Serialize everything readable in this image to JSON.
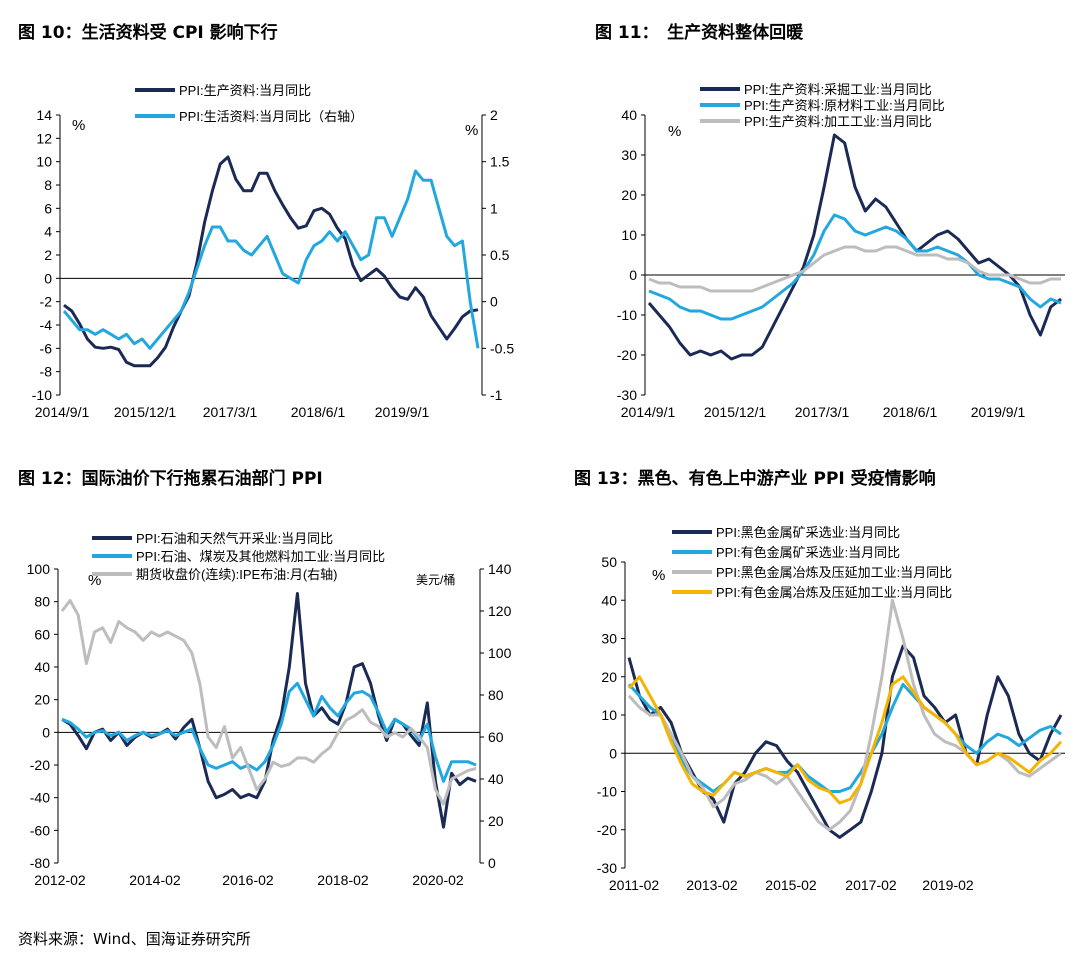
{
  "colors": {
    "navy": "#1b2a55",
    "sky": "#22a7df",
    "gray": "#bdbdbd",
    "gold": "#f5b400"
  },
  "source": "资料来源：Wind、国海证券研究所",
  "chart_data": [
    {
      "id": "fig10",
      "type": "line",
      "title": "图 10：生活资料受 CPI 影响下行",
      "x_ticks": [
        "2014/9/1",
        "2015/12/1",
        "2017/3/1",
        "2018/6/1",
        "2019/9/1"
      ],
      "left_axis": {
        "min": -10,
        "max": 14,
        "step": 2,
        "ticks": [
          "-10",
          "-8",
          "-6",
          "-4",
          "-2",
          "0",
          "2",
          "4",
          "6",
          "8",
          "10",
          "12",
          "14"
        ],
        "unit": "%"
      },
      "right_axis": {
        "min": -1,
        "max": 2,
        "step": 0.5,
        "ticks": [
          "-1",
          "-0.5",
          "0",
          "0.5",
          "1",
          "1.5",
          "2"
        ],
        "unit": "%"
      },
      "series": [
        {
          "name": "PPI:生产资料:当月同比",
          "color": "#1b2a55",
          "axis": "left",
          "values": [
            -2.3,
            -2.8,
            -3.9,
            -5.2,
            -5.9,
            -6.0,
            -5.9,
            -6.1,
            -7.2,
            -7.5,
            -7.5,
            -7.5,
            -6.8,
            -5.9,
            -4.2,
            -2.8,
            -1.5,
            1.3,
            4.8,
            7.5,
            9.8,
            10.4,
            8.5,
            7.5,
            7.5,
            9.0,
            9.0,
            7.5,
            6.3,
            5.2,
            4.3,
            4.5,
            5.8,
            6.0,
            5.5,
            4.3,
            3.4,
            1.1,
            -0.2,
            0.3,
            0.8,
            0.2,
            -0.8,
            -1.6,
            -1.8,
            -0.8,
            -1.6,
            -3.2,
            -4.2,
            -5.2,
            -4.3,
            -3.3,
            -2.8,
            -2.7
          ]
        },
        {
          "name": "PPI:生活资料:当月同比（右轴）",
          "color": "#22a7df",
          "axis": "right",
          "values": [
            -0.1,
            -0.2,
            -0.3,
            -0.3,
            -0.35,
            -0.3,
            -0.35,
            -0.4,
            -0.35,
            -0.45,
            -0.4,
            -0.5,
            -0.4,
            -0.3,
            -0.2,
            -0.1,
            0.1,
            0.35,
            0.6,
            0.8,
            0.8,
            0.65,
            0.65,
            0.55,
            0.5,
            0.6,
            0.7,
            0.5,
            0.3,
            0.25,
            0.2,
            0.45,
            0.6,
            0.65,
            0.75,
            0.65,
            0.75,
            0.6,
            0.45,
            0.5,
            0.9,
            0.9,
            0.7,
            0.9,
            1.1,
            1.4,
            1.3,
            1.3,
            1.0,
            0.7,
            0.6,
            0.65,
            0.0,
            -0.5
          ]
        }
      ]
    },
    {
      "id": "fig11",
      "type": "line",
      "title": "图 11：　生产资料整体回暖",
      "x_ticks": [
        "2014/9/1",
        "2015/12/1",
        "2017/3/1",
        "2018/6/1",
        "2019/9/1"
      ],
      "left_axis": {
        "min": -30,
        "max": 40,
        "step": 10,
        "ticks": [
          "-30",
          "-20",
          "-10",
          "0",
          "10",
          "20",
          "30",
          "40"
        ],
        "unit": "%"
      },
      "series": [
        {
          "name": "PPI:生产资料:采掘工业:当月同比",
          "color": "#1b2a55",
          "axis": "left",
          "values": [
            -7,
            -10,
            -13,
            -17,
            -20,
            -19,
            -20,
            -19,
            -21,
            -20,
            -20,
            -18,
            -13,
            -8,
            -3,
            2,
            10,
            22,
            35,
            33,
            22,
            16,
            19,
            17,
            13,
            9,
            6,
            8,
            10,
            11,
            9,
            6,
            3,
            4,
            2,
            0,
            -3,
            -10,
            -15,
            -8,
            -6
          ]
        },
        {
          "name": "PPI:生产资料:原材料工业:当月同比",
          "color": "#22a7df",
          "axis": "left",
          "values": [
            -4,
            -5,
            -6,
            -8,
            -9,
            -9,
            -10,
            -11,
            -11,
            -10,
            -9,
            -8,
            -6,
            -4,
            -2,
            1,
            5,
            11,
            15,
            14,
            11,
            10,
            11,
            12,
            11,
            9,
            6,
            6,
            7,
            6,
            5,
            3,
            0,
            -1,
            -1,
            -2,
            -3,
            -6,
            -8,
            -6,
            -7
          ]
        },
        {
          "name": "PPI:生产资料:加工工业:当月同比",
          "color": "#bdbdbd",
          "axis": "left",
          "values": [
            -1,
            -2,
            -2,
            -3,
            -3,
            -3,
            -4,
            -4,
            -4,
            -4,
            -4,
            -3,
            -2,
            -1,
            0,
            1,
            3,
            5,
            6,
            7,
            7,
            6,
            6,
            7,
            7,
            6,
            5,
            5,
            5,
            4,
            4,
            3,
            1,
            0,
            0,
            0,
            -1,
            -2,
            -2,
            -1,
            -1
          ]
        }
      ]
    },
    {
      "id": "fig12",
      "type": "line",
      "title": "图 12：国际油价下行拖累石油部门 PPI",
      "x_ticks": [
        "2012-02",
        "2014-02",
        "2016-02",
        "2018-02",
        "2020-02"
      ],
      "left_axis": {
        "min": -80,
        "max": 100,
        "step": 20,
        "ticks": [
          "-80",
          "-60",
          "-40",
          "-20",
          "0",
          "20",
          "40",
          "60",
          "80",
          "100"
        ],
        "unit": "%"
      },
      "right_axis": {
        "min": 0,
        "max": 140,
        "step": 20,
        "ticks": [
          "0",
          "20",
          "40",
          "60",
          "80",
          "100",
          "120",
          "140"
        ],
        "unit": "美元/桶"
      },
      "series": [
        {
          "name": "PPI:石油和天然气开采业:当月同比",
          "color": "#1b2a55",
          "axis": "left",
          "values": [
            8,
            5,
            -2,
            -10,
            0,
            2,
            -5,
            0,
            -8,
            -3,
            0,
            -3,
            -1,
            2,
            -4,
            3,
            8,
            -10,
            -30,
            -40,
            -38,
            -35,
            -40,
            -38,
            -40,
            -30,
            -5,
            10,
            40,
            85,
            30,
            10,
            15,
            8,
            5,
            18,
            40,
            42,
            30,
            10,
            -5,
            8,
            5,
            -2,
            -8,
            18,
            -30,
            -58,
            -25,
            -32,
            -28,
            -30
          ]
        },
        {
          "name": "PPI:石油、煤炭及其他燃料加工业:当月同比",
          "color": "#22a7df",
          "axis": "left",
          "values": [
            8,
            6,
            2,
            -3,
            0,
            1,
            -2,
            0,
            -5,
            -2,
            0,
            -2,
            -1,
            1,
            -2,
            0,
            2,
            -10,
            -20,
            -22,
            -20,
            -18,
            -22,
            -20,
            -23,
            -18,
            -8,
            5,
            25,
            30,
            20,
            10,
            22,
            15,
            10,
            18,
            24,
            25,
            22,
            12,
            0,
            8,
            5,
            2,
            -5,
            5,
            -15,
            -30,
            -18,
            -18,
            -18,
            -20
          ]
        },
        {
          "name": "期货收盘价(连续):IPE布油:月(右轴)",
          "color": "#bdbdbd",
          "axis": "right",
          "values": [
            120,
            125,
            118,
            95,
            110,
            112,
            105,
            115,
            112,
            110,
            106,
            110,
            108,
            110,
            108,
            106,
            100,
            85,
            60,
            55,
            65,
            50,
            55,
            45,
            35,
            40,
            48,
            46,
            47,
            50,
            50,
            48,
            52,
            55,
            62,
            68,
            70,
            73,
            67,
            65,
            60,
            62,
            60,
            64,
            60,
            55,
            35,
            28,
            40,
            42,
            44,
            45
          ]
        }
      ]
    },
    {
      "id": "fig13",
      "type": "line",
      "title": "图 13：黑色、有色上中游产业 PPI 受疫情影响",
      "x_ticks": [
        "2011-02",
        "2013-02",
        "2015-02",
        "2017-02",
        "2019-02"
      ],
      "left_axis": {
        "min": -30,
        "max": 50,
        "step": 10,
        "ticks": [
          "-30",
          "-20",
          "-10",
          "0",
          "10",
          "20",
          "30",
          "40",
          "50"
        ],
        "unit": "%"
      },
      "series": [
        {
          "name": "PPI:黑色金属矿采选业:当月同比",
          "color": "#1b2a55",
          "axis": "left",
          "values": [
            25,
            15,
            10,
            12,
            8,
            0,
            -5,
            -10,
            -12,
            -18,
            -8,
            -5,
            0,
            3,
            2,
            -2,
            -5,
            -10,
            -15,
            -20,
            -22,
            -20,
            -18,
            -10,
            0,
            20,
            28,
            25,
            15,
            12,
            8,
            10,
            0,
            -3,
            10,
            20,
            15,
            5,
            0,
            -2,
            5,
            10
          ]
        },
        {
          "name": "PPI:有色金属矿采选业:当月同比",
          "color": "#22a7df",
          "axis": "left",
          "values": [
            18,
            15,
            12,
            10,
            5,
            -2,
            -6,
            -8,
            -10,
            -8,
            -5,
            -6,
            -5,
            -4,
            -5,
            -5,
            -3,
            -6,
            -8,
            -10,
            -10,
            -9,
            -5,
            0,
            5,
            12,
            18,
            15,
            12,
            10,
            8,
            5,
            2,
            0,
            3,
            5,
            4,
            2,
            4,
            6,
            7,
            5
          ]
        },
        {
          "name": "PPI:黑色金属冶炼及压延加工业:当月同比",
          "color": "#bdbdbd",
          "axis": "left",
          "values": [
            15,
            12,
            10,
            10,
            5,
            0,
            -6,
            -9,
            -14,
            -12,
            -8,
            -7,
            -5,
            -6,
            -8,
            -6,
            -10,
            -14,
            -18,
            -20,
            -18,
            -15,
            -8,
            5,
            20,
            40,
            30,
            18,
            10,
            5,
            3,
            2,
            0,
            -3,
            -2,
            0,
            -2,
            -5,
            -6,
            -4,
            -2,
            0
          ]
        },
        {
          "name": "PPI:有色金属冶炼及压延加工业:当月同比",
          "color": "#f5b400",
          "axis": "left",
          "values": [
            17,
            20,
            15,
            10,
            3,
            -3,
            -8,
            -10,
            -11,
            -8,
            -5,
            -6,
            -5,
            -4,
            -5,
            -6,
            -3,
            -7,
            -9,
            -10,
            -13,
            -12,
            -8,
            0,
            8,
            18,
            20,
            16,
            12,
            10,
            8,
            5,
            0,
            -3,
            -2,
            0,
            -1,
            -3,
            -5,
            -2,
            0,
            3
          ]
        }
      ]
    }
  ]
}
